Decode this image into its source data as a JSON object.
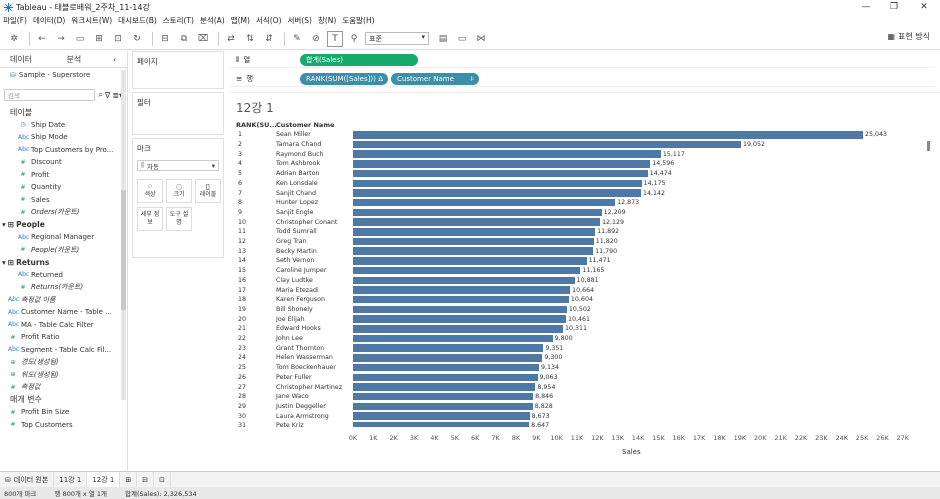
{
  "window": {
    "title": "Tableau - 태블로배워_2주차_11-14강"
  },
  "menu": [
    "파일(F)",
    "데이터(D)",
    "워크시트(W)",
    "대시보드(B)",
    "스토리(T)",
    "분석(A)",
    "맵(M)",
    "서식(O)",
    "서버(S)",
    "창(N)",
    "도움말(H)"
  ],
  "toolbar": {
    "format_select": "표준",
    "show_me": "표현 방식"
  },
  "data_pane": {
    "tab_data": "데이터",
    "tab_analysis": "분석",
    "source": "Sample - Superstore",
    "search_placeholder": "검색",
    "section_tables": "테이블",
    "fields": [
      {
        "name": "Ship Date",
        "type": "dim",
        "icon": "◷"
      },
      {
        "name": "Ship Mode",
        "type": "dim",
        "icon": "Abc"
      },
      {
        "name": "Top Customers by Pro...",
        "type": "dim",
        "icon": "Abc"
      },
      {
        "name": "Discount",
        "type": "mea",
        "icon": "#"
      },
      {
        "name": "Profit",
        "type": "mea",
        "icon": "#"
      },
      {
        "name": "Quantity",
        "type": "mea",
        "icon": "#"
      },
      {
        "name": "Sales",
        "type": "mea",
        "icon": "#"
      },
      {
        "name": "Orders(카운트)",
        "type": "mea",
        "icon": "#",
        "italic": true
      }
    ],
    "group_people": "People",
    "people_fields": [
      {
        "name": "Regional Manager",
        "type": "dim",
        "icon": "Abc"
      },
      {
        "name": "People(카운트)",
        "type": "mea",
        "icon": "#",
        "italic": true
      }
    ],
    "group_returns": "Returns",
    "returns_fields": [
      {
        "name": "Returned",
        "type": "dim",
        "icon": "Abc"
      },
      {
        "name": "Returns(카운트)",
        "type": "mea",
        "icon": "#",
        "italic": true
      }
    ],
    "other_fields": [
      {
        "name": "측정값 이름",
        "type": "dim",
        "icon": "Abc",
        "italic": true
      },
      {
        "name": "Customer Name - Table ...",
        "type": "dim",
        "icon": "Abc"
      },
      {
        "name": "MA - Table Calc Filter",
        "type": "dim",
        "icon": "Abc"
      },
      {
        "name": "Profit Ratio",
        "type": "mea",
        "icon": "#"
      },
      {
        "name": "Segment - Table Calc Fil...",
        "type": "dim",
        "icon": "Abc"
      },
      {
        "name": "경도(생성됨)",
        "type": "mea",
        "icon": "⊕",
        "italic": true
      },
      {
        "name": "위도(생성됨)",
        "type": "mea",
        "icon": "⊕",
        "italic": true
      },
      {
        "name": "측정값",
        "type": "mea",
        "icon": "#",
        "italic": true
      }
    ],
    "section_params": "매개 변수",
    "params": [
      {
        "name": "Profit Bin Size",
        "type": "mea",
        "icon": "#"
      },
      {
        "name": "Top Customers",
        "type": "mea",
        "icon": "#"
      }
    ]
  },
  "cards": {
    "pages": "페이지",
    "filters": "필터",
    "marks": "마크",
    "mark_type": "자동",
    "color": "색상",
    "size": "크기",
    "label": "레이블",
    "detail": "세부 정보",
    "tooltip": "도구 설명"
  },
  "shelves": {
    "columns_label": "열",
    "columns_pill": "합계(Sales)",
    "rows_label": "행",
    "rows_pill1": "RANK(SUM([Sales]))",
    "rows_pill1_delta": "Δ",
    "rows_pill2": "Customer Name",
    "rows_pill2_sort": "⊧"
  },
  "view": {
    "title": "12강 1",
    "col_header_rank": "RANK(SU...",
    "col_header_name": "Customer Name",
    "axis_label": "Sales",
    "axis_ticks": [
      "0K",
      "1K",
      "2K",
      "3K",
      "4K",
      "5K",
      "6K",
      "7K",
      "8K",
      "9K",
      "10K",
      "11K",
      "12K",
      "13K",
      "14K",
      "15K",
      "16K",
      "17K",
      "18K",
      "19K",
      "20K",
      "21K",
      "22K",
      "23K",
      "24K",
      "25K",
      "26K",
      "27K"
    ]
  },
  "chart_data": {
    "type": "bar",
    "orientation": "horizontal",
    "xlabel": "Sales",
    "xlim": [
      0,
      27500
    ],
    "rows": [
      {
        "rank": "1",
        "name": "Sean Miller",
        "value": 25043,
        "label": "25,043"
      },
      {
        "rank": "2",
        "name": "Tamara Chand",
        "value": 19052,
        "label": "19,052"
      },
      {
        "rank": "3",
        "name": "Raymond Buch",
        "value": 15117,
        "label": "15,117"
      },
      {
        "rank": "4",
        "name": "Tom Ashbrook",
        "value": 14596,
        "label": "14,596"
      },
      {
        "rank": "5",
        "name": "Adrian Barton",
        "value": 14474,
        "label": "14,474"
      },
      {
        "rank": "6",
        "name": "Ken Lonsdale",
        "value": 14175,
        "label": "14,175"
      },
      {
        "rank": "7",
        "name": "Sanjit Chand",
        "value": 14142,
        "label": "14,142"
      },
      {
        "rank": "8",
        "name": "Hunter Lopez",
        "value": 12873,
        "label": "12,873"
      },
      {
        "rank": "9",
        "name": "Sanjit Engle",
        "value": 12209,
        "label": "12,209"
      },
      {
        "rank": "10",
        "name": "Christopher Conant",
        "value": 12129,
        "label": "12,129"
      },
      {
        "rank": "11",
        "name": "Todd Sumrall",
        "value": 11892,
        "label": "11,892"
      },
      {
        "rank": "12",
        "name": "Greg Tran",
        "value": 11820,
        "label": "11,820"
      },
      {
        "rank": "13",
        "name": "Becky Martin",
        "value": 11790,
        "label": "11,790"
      },
      {
        "rank": "14",
        "name": "Seth Vernon",
        "value": 11471,
        "label": "11,471"
      },
      {
        "rank": "15",
        "name": "Caroline Jumper",
        "value": 11165,
        "label": "11,165"
      },
      {
        "rank": "16",
        "name": "Clay Ludtke",
        "value": 10881,
        "label": "10,881"
      },
      {
        "rank": "17",
        "name": "Maria Etezadi",
        "value": 10664,
        "label": "10,664"
      },
      {
        "rank": "18",
        "name": "Karen Ferguson",
        "value": 10604,
        "label": "10,604"
      },
      {
        "rank": "19",
        "name": "Bill Shonely",
        "value": 10502,
        "label": "10,502"
      },
      {
        "rank": "20",
        "name": "Joe Elijah",
        "value": 10461,
        "label": "10,461"
      },
      {
        "rank": "21",
        "name": "Edward Hooks",
        "value": 10311,
        "label": "10,311"
      },
      {
        "rank": "22",
        "name": "John Lee",
        "value": 9800,
        "label": "9,800"
      },
      {
        "rank": "23",
        "name": "Grant Thornton",
        "value": 9351,
        "label": "9,351"
      },
      {
        "rank": "24",
        "name": "Helen Wasserman",
        "value": 9300,
        "label": "9,300"
      },
      {
        "rank": "25",
        "name": "Tom Boeckenhauer",
        "value": 9134,
        "label": "9,134"
      },
      {
        "rank": "26",
        "name": "Peter Fuller",
        "value": 9063,
        "label": "9,063"
      },
      {
        "rank": "27",
        "name": "Christopher Martinez",
        "value": 8954,
        "label": "8,954"
      },
      {
        "rank": "28",
        "name": "Jane Waco",
        "value": 8846,
        "label": "8,846"
      },
      {
        "rank": "29",
        "name": "Justin Deggeller",
        "value": 8828,
        "label": "8,828"
      },
      {
        "rank": "30",
        "name": "Laura Armstrong",
        "value": 8673,
        "label": "8,673"
      },
      {
        "rank": "31",
        "name": "Pete Kriz",
        "value": 8647,
        "label": "8,647"
      }
    ],
    "bar_color": "#4e79a7"
  },
  "sheet_tabs": {
    "data_source": "데이터 원본",
    "tab1": "11강 1",
    "tab2": "12강 1"
  },
  "status": {
    "marks": "800개 마크",
    "rowscols": "행 800개 x 열 1개",
    "sum": "합계(Sales): 2,326,534"
  }
}
